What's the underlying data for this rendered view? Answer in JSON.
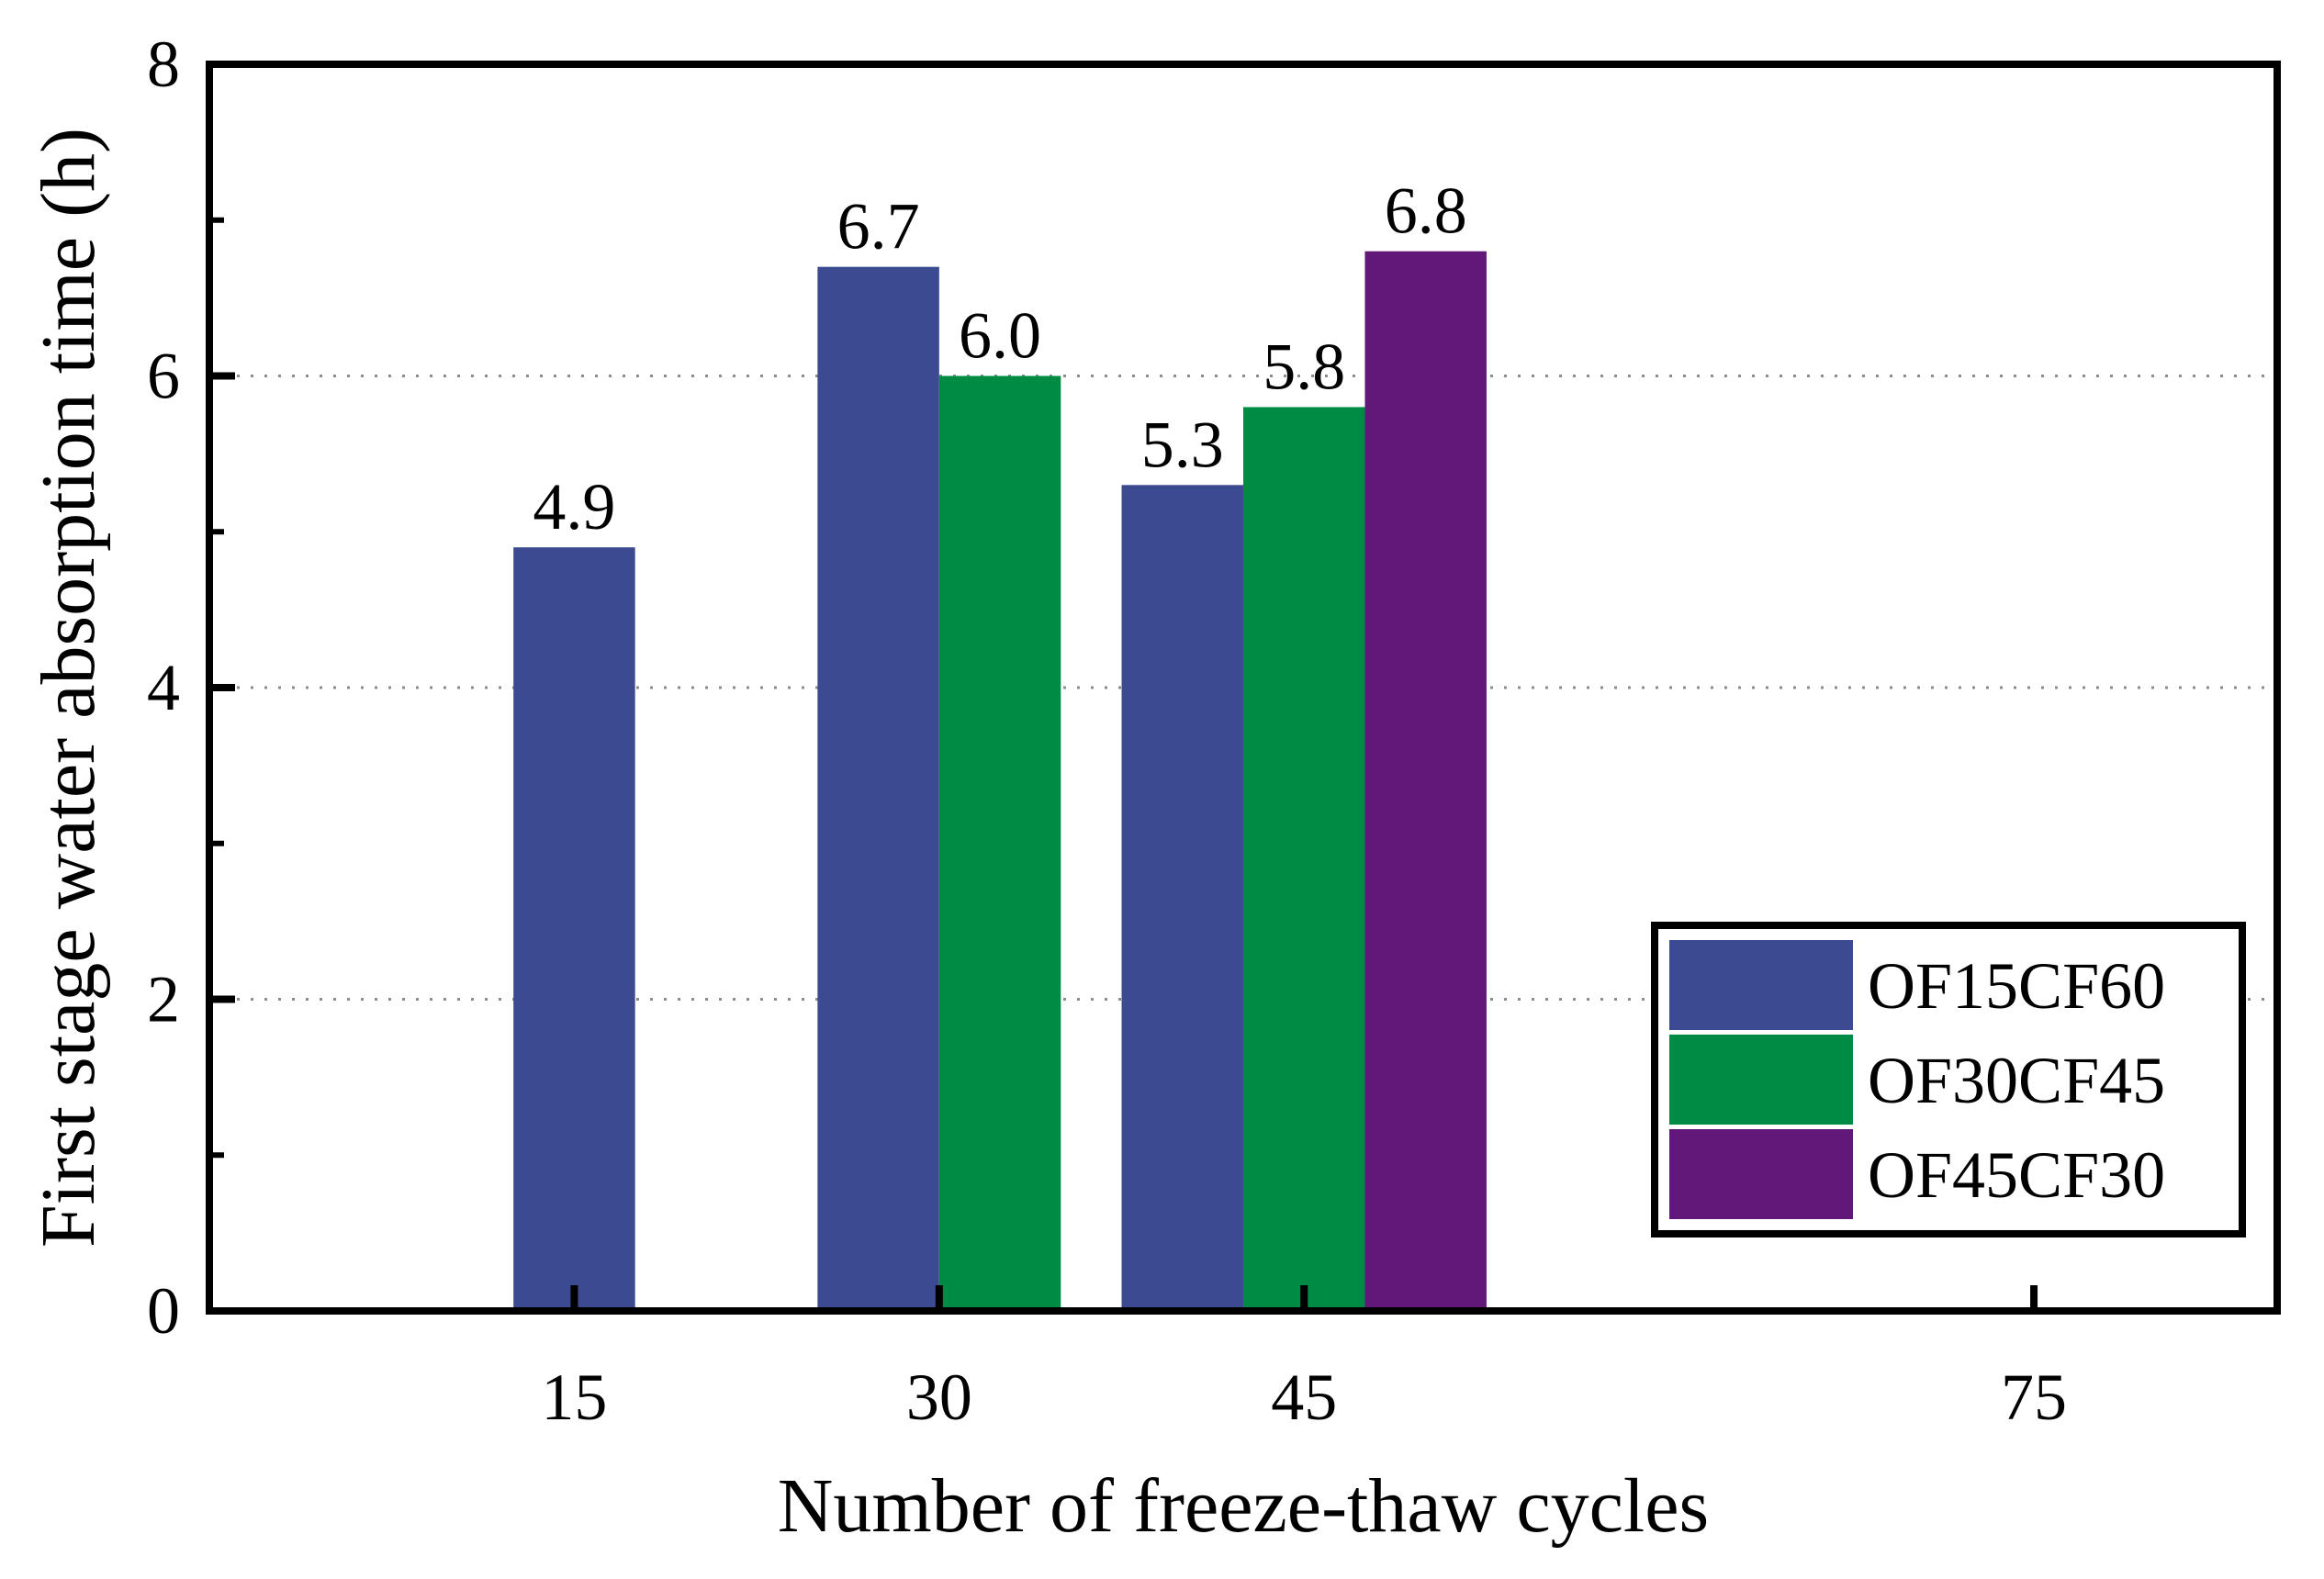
{
  "chart_data": {
    "type": "bar",
    "title": "",
    "xlabel": "Number of freeze-thaw cycles",
    "ylabel": "First stage water absorption time (h)",
    "x_ticks": [
      "15",
      "30",
      "45",
      "75"
    ],
    "xlim": [
      0,
      85
    ],
    "ylim": [
      0,
      8
    ],
    "y_ticks": [
      0,
      2,
      4,
      6,
      8
    ],
    "y_tick_labels": [
      "0",
      "2",
      "4",
      "6",
      "8"
    ],
    "grid": "horizontal dotted at 2, 4, 6",
    "legend_position": "lower-right",
    "bar_width_units": 5,
    "series": [
      {
        "name": "OF15CF60",
        "color": "#3c4a91",
        "points": [
          {
            "x": 15,
            "value": 4.9,
            "label": "4.9"
          },
          {
            "x": 30,
            "value": 6.7,
            "label": "6.7"
          },
          {
            "x": 45,
            "value": 5.3,
            "label": "5.3"
          }
        ]
      },
      {
        "name": "OF30CF45",
        "color": "#008b45",
        "points": [
          {
            "x": 30,
            "value": 6.0,
            "label": "6.0"
          },
          {
            "x": 45,
            "value": 5.8,
            "label": "5.8"
          }
        ]
      },
      {
        "name": "OF45CF30",
        "color": "#621878",
        "points": [
          {
            "x": 45,
            "value": 6.8,
            "label": "6.8"
          }
        ]
      }
    ]
  }
}
